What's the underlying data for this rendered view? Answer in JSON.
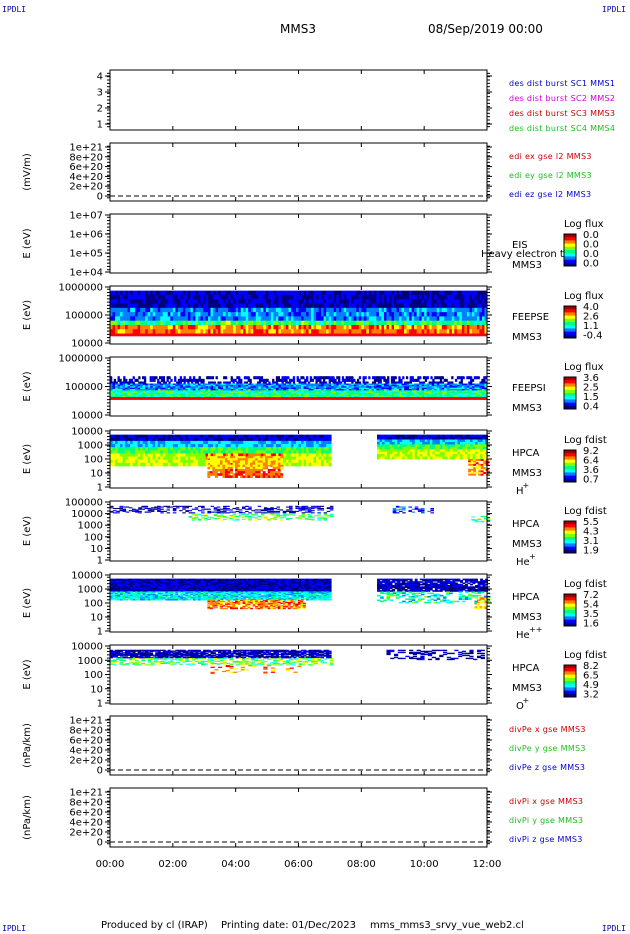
{
  "corner_label": "IPDLI",
  "header": {
    "spacecraft": "MMS3",
    "date": "08/Sep/2019 00:00"
  },
  "footer": {
    "producer": "Produced by cl (IRAP)",
    "printing": "Printing date: 01/Dec/2023",
    "script": "mms_mms3_srvy_vue_web2.cl"
  },
  "colors": {
    "blue": "#0000cc",
    "magenta": "#cc00cc",
    "red": "#cc0000",
    "green": "#22bb22",
    "flux_scale": [
      "#000080",
      "#0000ff",
      "#0080ff",
      "#00ffff",
      "#00ff80",
      "#80ff00",
      "#ffff00",
      "#ff8000",
      "#ff0000",
      "#a00000"
    ]
  },
  "chart_data": {
    "type": "heatmap",
    "x_axis": {
      "range": [
        "00:00",
        "12:00"
      ],
      "ticks": [
        "00:00",
        "02:00",
        "04:00",
        "06:00",
        "08:00",
        "10:00",
        "12:00"
      ]
    },
    "panels": [
      {
        "id": "burst",
        "ylabel": "",
        "yticks": [
          "1",
          "2",
          "3",
          "4"
        ],
        "legend": [
          {
            "text": "des dist burst SC1 MMS1",
            "color": "#0000cc"
          },
          {
            "text": "des dist burst SC2 MMS2",
            "color": "#cc00cc"
          },
          {
            "text": "des dist burst SC3 MMS3",
            "color": "#cc0000"
          },
          {
            "text": "des dist burst SC4 MMS4",
            "color": "#22bb22"
          }
        ]
      },
      {
        "id": "edi",
        "ylabel": "(mV/m)",
        "yticks": [
          "0",
          "2e+20",
          "4e+20",
          "6e+20",
          "8e+20",
          "1e+21"
        ],
        "legend": [
          {
            "text": "edi ex gse l2 MMS3",
            "color": "#cc0000"
          },
          {
            "text": "edi ey gse l2 MMS3",
            "color": "#22bb22"
          },
          {
            "text": "edi ez gse l2 MMS3",
            "color": "#0000cc"
          }
        ]
      },
      {
        "id": "eis",
        "ylabel": "E (eV)",
        "yticks": [
          "1e+04",
          "1e+05",
          "1e+06",
          "1e+07"
        ],
        "instrument": [
          "EIS",
          "MMS3"
        ],
        "overlay": "Heavy electron to",
        "colorbar": {
          "title": "Log flux",
          "ticks": [
            "0.0",
            "0.0",
            "0.0",
            "0.0"
          ]
        }
      },
      {
        "id": "feepse",
        "ylabel": "E (eV)",
        "yticks": [
          "10000",
          "100000",
          "1000000"
        ],
        "instrument": [
          "FEEPSE",
          "MMS3"
        ],
        "colorbar": {
          "title": "Log flux",
          "ticks": [
            "4.0",
            "2.6",
            "1.1",
            "-0.4"
          ]
        }
      },
      {
        "id": "feepsi",
        "ylabel": "E (eV)",
        "yticks": [
          "10000",
          "100000",
          "1000000"
        ],
        "instrument": [
          "FEEPSI",
          "MMS3"
        ],
        "colorbar": {
          "title": "Log flux",
          "ticks": [
            "3.6",
            "2.5",
            "1.5",
            "0.4"
          ]
        }
      },
      {
        "id": "hpca_h",
        "ylabel": "E (eV)",
        "yticks": [
          "1",
          "10",
          "100",
          "1000",
          "10000"
        ],
        "instrument": [
          "HPCA",
          "MMS3"
        ],
        "species": "H",
        "charge": "+",
        "colorbar": {
          "title": "Log fdist",
          "ticks": [
            "9.2",
            "6.4",
            "3.6",
            "0.7"
          ]
        }
      },
      {
        "id": "hpca_he",
        "ylabel": "E (eV)",
        "yticks": [
          "1",
          "10",
          "100",
          "1000",
          "10000",
          "100000"
        ],
        "instrument": [
          "HPCA",
          "MMS3"
        ],
        "species": "He",
        "charge": "+",
        "colorbar": {
          "title": "Log fdist",
          "ticks": [
            "5.5",
            "4.3",
            "3.1",
            "1.9"
          ]
        }
      },
      {
        "id": "hpca_hepp",
        "ylabel": "E (eV)",
        "yticks": [
          "1",
          "10",
          "100",
          "1000",
          "10000"
        ],
        "instrument": [
          "HPCA",
          "MMS3"
        ],
        "species": "He",
        "charge": "++",
        "colorbar": {
          "title": "Log fdist",
          "ticks": [
            "7.2",
            "5.4",
            "3.5",
            "1.6"
          ]
        }
      },
      {
        "id": "hpca_o",
        "ylabel": "E (eV)",
        "yticks": [
          "1",
          "10",
          "100",
          "1000",
          "10000"
        ],
        "instrument": [
          "HPCA",
          "MMS3"
        ],
        "species": "O",
        "charge": "+",
        "colorbar": {
          "title": "Log fdist",
          "ticks": [
            "8.2",
            "6.5",
            "4.9",
            "3.2"
          ]
        }
      },
      {
        "id": "divpe",
        "ylabel": "(nPa/km)",
        "yticks": [
          "0",
          "2e+20",
          "4e+20",
          "6e+20",
          "8e+20",
          "1e+21"
        ],
        "legend": [
          {
            "text": "divPe x gse MMS3",
            "color": "#cc0000"
          },
          {
            "text": "divPe y gse MMS3",
            "color": "#22bb22"
          },
          {
            "text": "divPe z gse MMS3",
            "color": "#0000cc"
          }
        ]
      },
      {
        "id": "divpi",
        "ylabel": "(nPa/km)",
        "yticks": [
          "0",
          "2e+20",
          "4e+20",
          "6e+20",
          "8e+20",
          "1e+21"
        ],
        "legend": [
          {
            "text": "divPi x gse MMS3",
            "color": "#cc0000"
          },
          {
            "text": "divPi y gse MMS3",
            "color": "#22bb22"
          },
          {
            "text": "divPi z gse MMS3",
            "color": "#0000cc"
          }
        ]
      }
    ]
  }
}
